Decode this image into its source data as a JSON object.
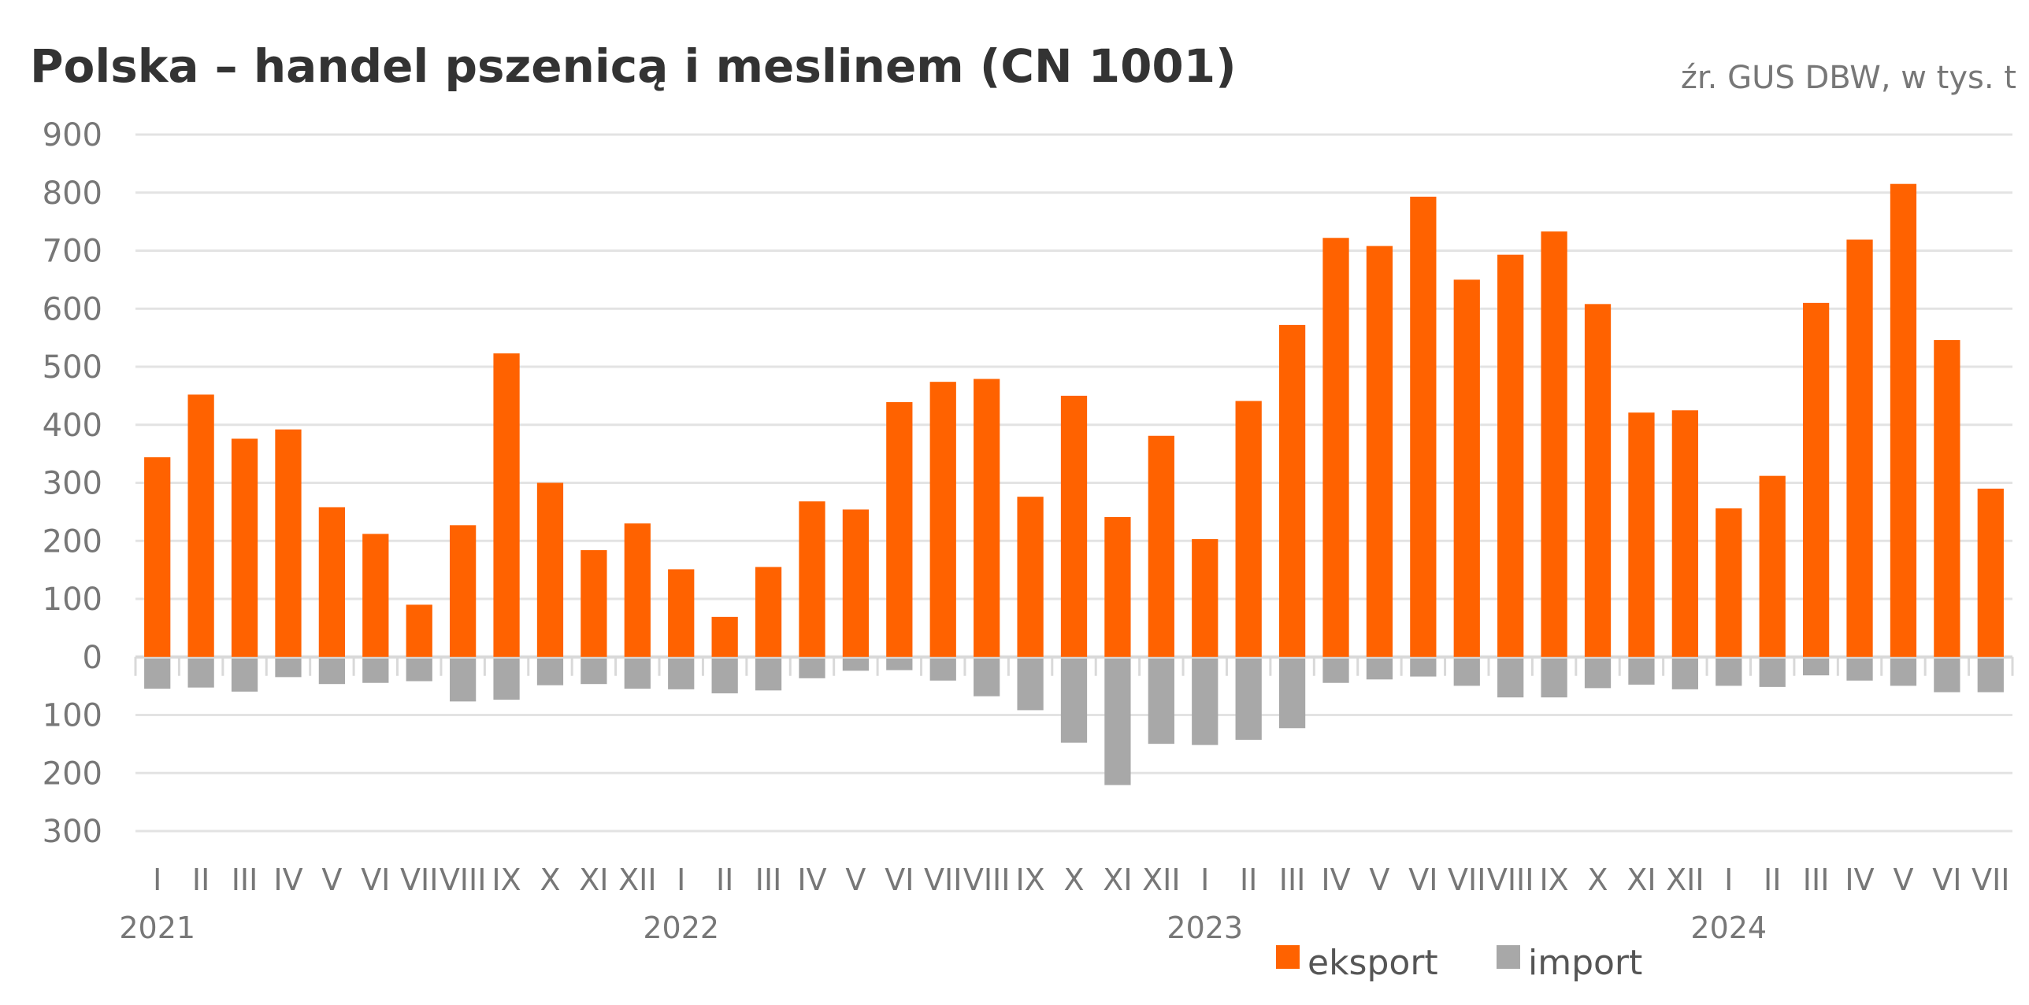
{
  "chart_data": {
    "type": "bar",
    "title": "Polska – handel pszenicą i meslinem (CN 1001)",
    "source_note": "źr. GUS DBW, w tys. t",
    "xlabel": "",
    "ylabel": "",
    "ylim": [
      -300,
      900
    ],
    "yticks": [
      900,
      800,
      700,
      600,
      500,
      400,
      300,
      200,
      100,
      0,
      -100,
      -200,
      -300
    ],
    "ytick_labels": [
      "900",
      "800",
      "700",
      "600",
      "500",
      "400",
      "300",
      "200",
      "100",
      "0",
      "100",
      "200",
      "300"
    ],
    "grid": true,
    "legend_position": "bottom-right",
    "years": [
      {
        "label": "2021",
        "start_index": 0
      },
      {
        "label": "2022",
        "start_index": 12
      },
      {
        "label": "2023",
        "start_index": 24
      },
      {
        "label": "2024",
        "start_index": 36
      }
    ],
    "categories": [
      "I",
      "II",
      "III",
      "IV",
      "V",
      "VI",
      "VII",
      "VIII",
      "IX",
      "X",
      "XI",
      "XII",
      "I",
      "II",
      "III",
      "IV",
      "V",
      "VI",
      "VII",
      "VIII",
      "IX",
      "X",
      "XI",
      "XII",
      "I",
      "II",
      "III",
      "IV",
      "V",
      "VI",
      "VII",
      "VIII",
      "IX",
      "X",
      "XI",
      "XII",
      "I",
      "II",
      "III",
      "IV",
      "V",
      "VI",
      "VII"
    ],
    "series": [
      {
        "name": "eksport",
        "color": "#ff6200",
        "values": [
          344,
          452,
          376,
          392,
          258,
          212,
          90,
          227,
          523,
          300,
          184,
          230,
          151,
          69,
          155,
          268,
          254,
          439,
          474,
          479,
          276,
          450,
          241,
          381,
          203,
          441,
          572,
          722,
          708,
          793,
          650,
          693,
          733,
          608,
          421,
          425,
          256,
          312,
          610,
          719,
          815,
          546,
          290
        ]
      },
      {
        "name": "import",
        "color": "#a8a8a8",
        "values": [
          -52,
          -50,
          -57,
          -32,
          -44,
          -42,
          -39,
          -74,
          -71,
          -46,
          -44,
          -52,
          -53,
          -60,
          -55,
          -34,
          -21,
          -20,
          -38,
          -65,
          -89,
          -145,
          -218,
          -147,
          -149,
          -140,
          -120,
          -42,
          -36,
          -31,
          -47,
          -67,
          -67,
          -51,
          -45,
          -53,
          -47,
          -49,
          -29,
          -38,
          -47,
          -58,
          -58
        ]
      }
    ]
  }
}
